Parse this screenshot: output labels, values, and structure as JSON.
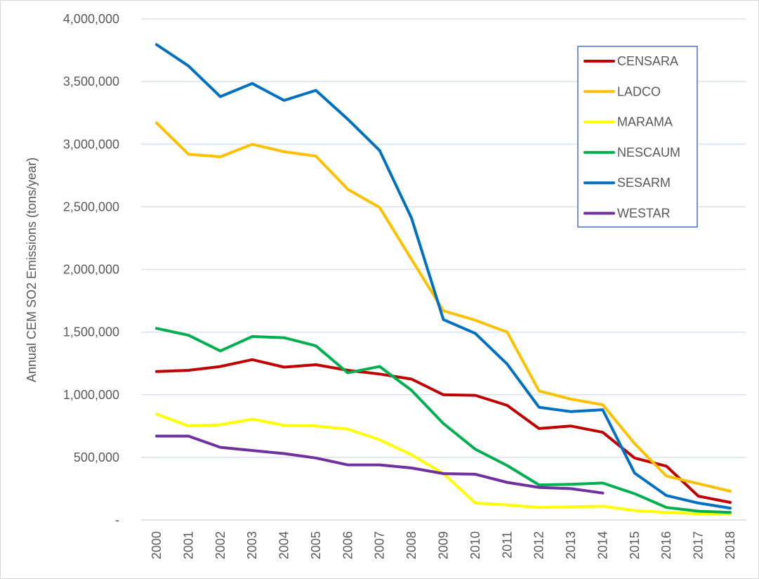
{
  "chart_data": {
    "type": "line",
    "title": "",
    "xlabel": "",
    "ylabel": "Annual CEM SO2 Emissions (tons/year)",
    "ylim": [
      0,
      4000000
    ],
    "yticks": [
      0,
      500000,
      1000000,
      1500000,
      2000000,
      2500000,
      3000000,
      3500000,
      4000000
    ],
    "ytick_labels": [
      "-",
      "500,000",
      "1,000,000",
      "1,500,000",
      "2,000,000",
      "2,500,000",
      "3,000,000",
      "3,500,000",
      "4,000,000"
    ],
    "grid": true,
    "legend_position": "top-right",
    "x": [
      "2000",
      "2001",
      "2002",
      "2003",
      "2004",
      "2005",
      "2006",
      "2007",
      "2008",
      "2009",
      "2010",
      "2011",
      "2012",
      "2013",
      "2014",
      "2015",
      "2016",
      "2017",
      "2018"
    ],
    "series": [
      {
        "name": "CENSARA",
        "color": "#C00000",
        "values": [
          1185000,
          1195000,
          1225000,
          1280000,
          1220000,
          1240000,
          1195000,
          1165000,
          1125000,
          1000000,
          995000,
          915000,
          730000,
          750000,
          700000,
          495000,
          430000,
          190000,
          140000
        ]
      },
      {
        "name": "LADCO",
        "color": "#FFC000",
        "values": [
          3170000,
          2920000,
          2900000,
          3000000,
          2940000,
          2905000,
          2640000,
          2495000,
          2080000,
          1670000,
          1595000,
          1500000,
          1030000,
          965000,
          920000,
          610000,
          350000,
          290000,
          230000
        ]
      },
      {
        "name": "MARAMA",
        "color": "#FFFF00",
        "values": [
          845000,
          750000,
          760000,
          805000,
          755000,
          750000,
          725000,
          640000,
          520000,
          370000,
          135000,
          120000,
          100000,
          105000,
          110000,
          75000,
          60000,
          50000,
          50000
        ]
      },
      {
        "name": "NESCAUM",
        "color": "#00B050",
        "values": [
          1530000,
          1475000,
          1350000,
          1465000,
          1455000,
          1390000,
          1175000,
          1225000,
          1035000,
          770000,
          565000,
          435000,
          280000,
          285000,
          295000,
          210000,
          100000,
          70000,
          60000
        ]
      },
      {
        "name": "SESARM",
        "color": "#0070C0",
        "values": [
          3795000,
          3625000,
          3380000,
          3485000,
          3350000,
          3430000,
          3200000,
          2950000,
          2410000,
          1600000,
          1490000,
          1245000,
          900000,
          865000,
          880000,
          375000,
          195000,
          135000,
          95000
        ]
      },
      {
        "name": "WESTAR",
        "color": "#7030A0",
        "values": [
          670000,
          670000,
          580000,
          555000,
          530000,
          495000,
          440000,
          440000,
          415000,
          370000,
          365000,
          300000,
          260000,
          250000,
          215000,
          null,
          null,
          null,
          null
        ]
      }
    ]
  }
}
